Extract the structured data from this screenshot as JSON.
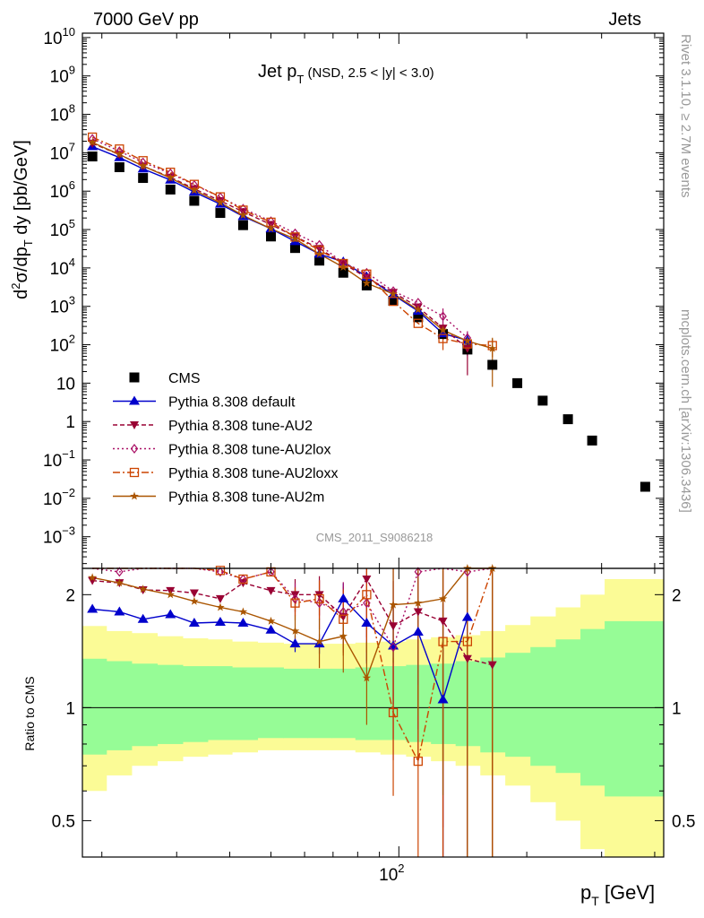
{
  "header": {
    "left": "7000 GeV pp",
    "right": "Jets"
  },
  "side_text": {
    "top": "Rivet 3.1.10, ≥ 2.7M events",
    "bottom": "mcplots.cern.ch [arXiv:1306.3436]"
  },
  "analysis_id": "CMS_2011_S9086218",
  "chart_data": [
    {
      "type": "line",
      "title": {
        "main": "Jet p",
        "sub": "T",
        "rest": " (NSD, 2.5 < |y| < 3.0)"
      },
      "ylabel": {
        "a": "d",
        "a_sup": "2",
        "b": "σ/dp",
        "b_sub": "T",
        "c": " dy [pb/GeV]"
      },
      "xscale": "log",
      "yscale": "log",
      "xlim": [
        18,
        420
      ],
      "ylim": [
        0.00015,
        13000000000.0
      ],
      "y_tick_labels": [
        {
          "v": 10000000000.0,
          "base": "10",
          "exp": "10"
        },
        {
          "v": 1000000000.0,
          "base": "10",
          "exp": "9"
        },
        {
          "v": 100000000.0,
          "base": "10",
          "exp": "8"
        },
        {
          "v": 10000000.0,
          "base": "10",
          "exp": "7"
        },
        {
          "v": 1000000.0,
          "base": "10",
          "exp": "6"
        },
        {
          "v": 100000.0,
          "base": "10",
          "exp": "5"
        },
        {
          "v": 10000.0,
          "base": "10",
          "exp": "4"
        },
        {
          "v": 1000.0,
          "base": "10",
          "exp": "3"
        },
        {
          "v": 100,
          "base": "10",
          "exp": "2"
        },
        {
          "v": 10,
          "base": "10",
          "exp": ""
        },
        {
          "v": 1,
          "base": "1",
          "exp": ""
        },
        {
          "v": 0.1,
          "base": "10",
          "exp": "−1"
        },
        {
          "v": 0.01,
          "base": "10",
          "exp": "−2"
        },
        {
          "v": 0.001,
          "base": "10",
          "exp": "−3"
        }
      ],
      "legend_position": "lower-left",
      "x": [
        19,
        22,
        25,
        29,
        33,
        38,
        43,
        50,
        57,
        65,
        74,
        84,
        97,
        111,
        127,
        145,
        166,
        190,
        218,
        250,
        285,
        380
      ],
      "series": [
        {
          "name": "CMS",
          "color": "#000000",
          "marker": "square",
          "dash": "none",
          "values": [
            8000000.0,
            4200000.0,
            2200000.0,
            1100000.0,
            560000.0,
            270000.0,
            130000.0,
            66000.0,
            33000.0,
            15500.0,
            7500.0,
            3500.0,
            1400.0,
            520.0,
            190.0,
            75,
            30,
            10,
            3.5,
            1.15,
            0.32,
            0.02
          ]
        },
        {
          "name": "Pythia 8.308 default",
          "color": "#0000cc",
          "marker": "triangle-up",
          "dash": "none",
          "values": [
            14500000.0,
            7500000.0,
            3800000.0,
            1950000.0,
            950000.0,
            460000.0,
            220000.0,
            105000.0,
            49000.0,
            23000.0,
            14500.0,
            5900.0,
            2000.0,
            750.0,
            195.0,
            130.0,
            null,
            null,
            null,
            null,
            null,
            null
          ],
          "err": [
            0,
            0,
            0,
            0,
            0,
            0,
            0,
            0,
            0,
            0,
            0,
            0,
            0,
            0,
            0,
            0.6,
            null,
            null,
            null,
            null,
            null,
            null
          ]
        },
        {
          "name": "Pythia 8.308 tune-AU2",
          "color": "#990033",
          "marker": "triangle-down",
          "dash": "5,3",
          "values": [
            17500000.0,
            9000000.0,
            4500000.0,
            2300000.0,
            1150000.0,
            560000.0,
            290000.0,
            135000.0,
            66000.0,
            32000.0,
            13000.0,
            5600.0,
            2300.0,
            960.0,
            270.0,
            80,
            null,
            null,
            null,
            null,
            null,
            null
          ],
          "err": [
            0,
            0,
            0,
            0,
            0,
            0,
            0,
            0,
            0,
            0,
            0,
            0,
            0,
            0,
            0.3,
            0.8,
            null,
            null,
            null,
            null,
            null,
            null
          ]
        },
        {
          "name": "Pythia 8.308 tune-AU2lox",
          "color": "#aa1166",
          "marker": "diamond-open",
          "dash": "2,3",
          "values": [
            23000000.0,
            11000000.0,
            5600000.0,
            2900000.0,
            1450000.0,
            700000.0,
            350000.0,
            165000.0,
            80000.0,
            40000.0,
            13500.0,
            7500.0,
            2500.0,
            1250.0,
            550.0,
            150.0,
            null,
            null,
            null,
            null,
            null,
            null
          ],
          "err": [
            0,
            0,
            0,
            0,
            0,
            0,
            0,
            0,
            0,
            0,
            0,
            0,
            0,
            0,
            0.6,
            0.5,
            null,
            null,
            null,
            null,
            null,
            null
          ]
        },
        {
          "name": "Pythia 8.308 tune-AU2loxx",
          "color": "#cc4400",
          "marker": "square-open",
          "dash": "8,3,2,3",
          "values": [
            25500000.0,
            12500000.0,
            6200000.0,
            3100000.0,
            1500000.0,
            710000.0,
            320000.0,
            155000.0,
            64000.0,
            29000.0,
            13000.0,
            6900.0,
            1350.0,
            360.0,
            145.0,
            105.0,
            95,
            null,
            null,
            null,
            null,
            null
          ],
          "err": [
            0,
            0,
            0,
            0,
            0,
            0,
            0,
            0,
            0,
            0,
            0,
            0,
            0,
            0,
            0.5,
            0.4,
            0.5,
            null,
            null,
            null,
            null,
            null
          ]
        },
        {
          "name": "Pythia 8.308 tune-AU2m",
          "color": "#aa5500",
          "marker": "star",
          "dash": "none",
          "values": [
            18500000.0,
            9000000.0,
            4500000.0,
            2200000.0,
            1050000.0,
            500000.0,
            235000.0,
            105000.0,
            57000.0,
            23000.0,
            10500.0,
            4000.0,
            2100.0,
            820.0,
            240.0,
            125.0,
            80,
            null,
            null,
            null,
            null,
            null
          ],
          "err": [
            0,
            0,
            0,
            0,
            0,
            0,
            0,
            0,
            0,
            0,
            0,
            0,
            0,
            0,
            0,
            0.3,
            0.9,
            null,
            null,
            null,
            null,
            null
          ]
        }
      ]
    },
    {
      "type": "line",
      "ylabel": "Ratio to CMS",
      "xlabel": {
        "main": "p",
        "sub": "T",
        "rest": " [GeV]"
      },
      "xscale": "log",
      "yscale": "log",
      "xlim": [
        18,
        420
      ],
      "ylim": [
        0.4,
        2.35
      ],
      "y_tick_labels": [
        "0.5",
        "1",
        "2"
      ],
      "x_tick_label": {
        "v": 100,
        "base": "10",
        "exp": "2"
      },
      "reference_line": 1,
      "x_edges": [
        18,
        20.5,
        23.5,
        27,
        31,
        35.5,
        40.5,
        46.5,
        53.5,
        61,
        69.5,
        79,
        90.5,
        104,
        119,
        136,
        155.5,
        178,
        204,
        234,
        267.5,
        305,
        350,
        420
      ],
      "band_yellow": [
        [
          0.6,
          1.65
        ],
        [
          0.66,
          1.6
        ],
        [
          0.7,
          1.58
        ],
        [
          0.72,
          1.55
        ],
        [
          0.74,
          1.53
        ],
        [
          0.75,
          1.52
        ],
        [
          0.76,
          1.5
        ],
        [
          0.77,
          1.49
        ],
        [
          0.77,
          1.48
        ],
        [
          0.77,
          1.48
        ],
        [
          0.77,
          1.48
        ],
        [
          0.76,
          1.49
        ],
        [
          0.75,
          1.5
        ],
        [
          0.74,
          1.52
        ],
        [
          0.72,
          1.54
        ],
        [
          0.7,
          1.56
        ],
        [
          0.66,
          1.6
        ],
        [
          0.62,
          1.66
        ],
        [
          0.56,
          1.75
        ],
        [
          0.5,
          1.85
        ],
        [
          0.42,
          2.0
        ],
        [
          0.38,
          2.2
        ],
        [
          0.38,
          2.2
        ]
      ],
      "band_green": [
        [
          0.75,
          1.35
        ],
        [
          0.77,
          1.33
        ],
        [
          0.79,
          1.31
        ],
        [
          0.8,
          1.3
        ],
        [
          0.81,
          1.29
        ],
        [
          0.82,
          1.29
        ],
        [
          0.82,
          1.28
        ],
        [
          0.83,
          1.28
        ],
        [
          0.83,
          1.27
        ],
        [
          0.83,
          1.27
        ],
        [
          0.83,
          1.27
        ],
        [
          0.82,
          1.28
        ],
        [
          0.82,
          1.29
        ],
        [
          0.81,
          1.3
        ],
        [
          0.8,
          1.31
        ],
        [
          0.79,
          1.33
        ],
        [
          0.76,
          1.36
        ],
        [
          0.74,
          1.4
        ],
        [
          0.7,
          1.45
        ],
        [
          0.67,
          1.52
        ],
        [
          0.62,
          1.62
        ],
        [
          0.58,
          1.7
        ],
        [
          0.58,
          1.7
        ]
      ],
      "series": [
        {
          "name": "Pythia 8.308 default",
          "color": "#0000cc",
          "marker": "triangle-up",
          "dash": "none",
          "values": [
            1.83,
            1.8,
            1.72,
            1.77,
            1.68,
            1.69,
            1.68,
            1.61,
            1.48,
            1.48,
            1.95,
            1.68,
            1.46,
            1.59,
            1.05,
            1.74
          ],
          "err": [
            0,
            0,
            0,
            0,
            0,
            0,
            0,
            0,
            0.05,
            0.06,
            0.1,
            0.22,
            0.3,
            0.45,
            0.8,
            1.1
          ]
        },
        {
          "name": "Pythia 8.308 tune-AU2",
          "color": "#990033",
          "marker": "triangle-down",
          "dash": "5,3",
          "values": [
            2.18,
            2.15,
            2.06,
            2.05,
            2.02,
            1.95,
            2.15,
            2.05,
            2.0,
            2.0,
            1.75,
            2.2,
            1.65,
            1.8,
            1.7,
            1.35,
            1.3
          ],
          "err": [
            0,
            0,
            0,
            0,
            0,
            0,
            0,
            0,
            0.1,
            0.12,
            0.2,
            0.3,
            0.5,
            0.6,
            0.9,
            1.2,
            1.2
          ]
        },
        {
          "name": "Pythia 8.308 tune-AU2lox",
          "color": "#aa1166",
          "marker": "diamond-open",
          "dash": "2,3",
          "values": [
            2.4,
            2.3,
            2.42,
            2.45,
            2.4,
            2.3,
            2.2,
            2.3,
            1.95,
            1.9,
            1.8,
            1.9,
            1.45,
            2.3,
            2.4,
            2.3,
            2.4
          ],
          "err": [
            0,
            0,
            0,
            0,
            0,
            0,
            0,
            0,
            0.1,
            0.15,
            0.2,
            0.3,
            0.5,
            0.6,
            0.8,
            1.0,
            1.0
          ]
        },
        {
          "name": "Pythia 8.308 tune-AU2loxx",
          "color": "#cc4400",
          "marker": "square-open",
          "dash": "8,3,2,3",
          "values": [
            2.45,
            2.4,
            2.43,
            2.5,
            2.5,
            2.32,
            2.2,
            2.3,
            1.9,
            1.95,
            1.72,
            2.0,
            0.97,
            0.72,
            1.5,
            1.5,
            2.5
          ],
          "err": [
            0,
            0,
            0,
            0,
            0,
            0,
            0,
            0,
            0.1,
            0.12,
            0.2,
            0.3,
            0.4,
            0.6,
            0.8,
            1.0,
            1.0
          ]
        },
        {
          "name": "Pythia 8.308 tune-AU2m",
          "color": "#aa5500",
          "marker": "star",
          "dash": "none",
          "values": [
            2.22,
            2.15,
            2.07,
            2.0,
            1.92,
            1.85,
            1.8,
            1.7,
            1.6,
            1.5,
            1.55,
            1.2,
            1.88,
            1.9,
            1.95,
            2.35,
            2.35
          ],
          "err": [
            0,
            0,
            0,
            0,
            0,
            0,
            0,
            0,
            0.1,
            0.15,
            0.2,
            0.25,
            0.3,
            0.5,
            0.7,
            1.2,
            1.2
          ]
        }
      ]
    }
  ]
}
